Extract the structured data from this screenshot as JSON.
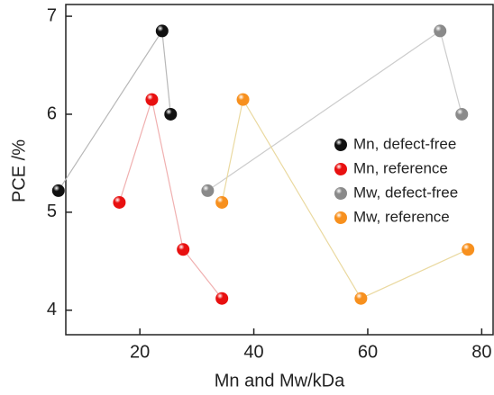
{
  "chart_data": {
    "type": "line",
    "x_label": "Mn and Mw/kDa",
    "y_label": "PCE /%",
    "xlim": [
      7,
      82
    ],
    "ylim": [
      3.75,
      7.12
    ],
    "xticks": [
      20,
      40,
      60,
      80
    ],
    "yticks": [
      4,
      5,
      6,
      7
    ],
    "legend": "right",
    "series": [
      {
        "name": "Mn, defect-free",
        "color": "#111111",
        "line_color": "#b8b8b8",
        "x": [
          5.7,
          23.9,
          25.4
        ],
        "values": [
          5.22,
          6.85,
          6.0
        ]
      },
      {
        "name": "Mn, reference",
        "color": "#e81010",
        "line_color": "#f0b0b0",
        "x": [
          16.4,
          22.1,
          27.6,
          34.4
        ],
        "values": [
          5.1,
          6.15,
          4.62,
          4.12
        ]
      },
      {
        "name": "Mw, defect-free",
        "color": "#8a8a8a",
        "line_color": "#cccccc",
        "x": [
          31.9,
          72.7,
          76.5
        ],
        "values": [
          5.22,
          6.85,
          6.0
        ]
      },
      {
        "name": "Mw, reference",
        "color": "#f7901e",
        "line_color": "#ead9a0",
        "x": [
          34.4,
          38.1,
          58.8,
          77.6
        ],
        "values": [
          5.1,
          6.15,
          4.12,
          4.62
        ]
      }
    ]
  }
}
